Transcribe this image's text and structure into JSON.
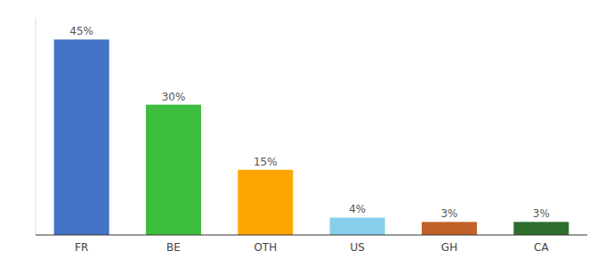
{
  "chart_data": {
    "type": "bar",
    "categories": [
      "FR",
      "BE",
      "OTH",
      "US",
      "GH",
      "CA"
    ],
    "values": [
      45,
      30,
      15,
      4,
      3,
      3
    ],
    "value_labels": [
      "45%",
      "30%",
      "15%",
      "4%",
      "3%",
      "3%"
    ],
    "colors": [
      "#4472C4",
      "#3DBD3D",
      "#FFA500",
      "#87CEEB",
      "#C1622A",
      "#2D6E2D"
    ],
    "ylim": [
      0,
      50
    ],
    "data_labels": true,
    "tick_labels": "x"
  }
}
